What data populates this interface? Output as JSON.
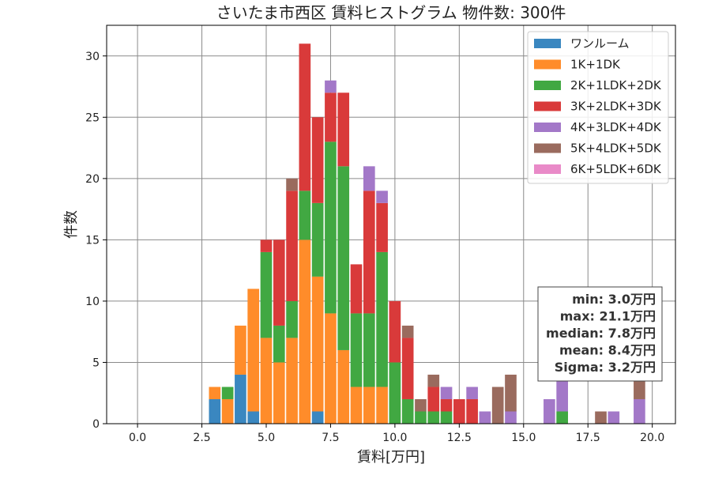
{
  "chart_data": {
    "type": "bar",
    "stacked": true,
    "title": "さいたま市西区 賃料ヒストグラム 物件数: 300件",
    "xlabel": "賃料[万円]",
    "ylabel": "件数",
    "xlim": [
      -1.2,
      20.9
    ],
    "ylim": [
      0,
      32.5
    ],
    "xticks": [
      0.0,
      2.5,
      5.0,
      7.5,
      10.0,
      12.5,
      15.0,
      17.5,
      20.0
    ],
    "xtick_labels": [
      "0.0",
      "2.5",
      "5.0",
      "7.5",
      "10.0",
      "12.5",
      "15.0",
      "17.5",
      "20.0"
    ],
    "yticks": [
      0,
      5,
      10,
      15,
      20,
      25,
      30
    ],
    "ytick_labels": [
      "0",
      "5",
      "10",
      "15",
      "20",
      "25",
      "30"
    ],
    "grid": true,
    "legend_position": "top-right",
    "bin_width": 0.5,
    "x": [
      3.0,
      3.5,
      4.0,
      4.5,
      5.0,
      5.5,
      6.0,
      6.5,
      7.0,
      7.5,
      8.0,
      8.5,
      9.0,
      9.5,
      10.0,
      10.5,
      11.0,
      11.5,
      12.0,
      12.5,
      13.0,
      13.5,
      14.0,
      14.5,
      16.0,
      16.5,
      18.0,
      18.5,
      19.5
    ],
    "series": [
      {
        "name": "ワンルーム",
        "color": "#3a87c0",
        "values": [
          2,
          0,
          4,
          1,
          0,
          0,
          0,
          0,
          1,
          0,
          0,
          0,
          0,
          0,
          0,
          0,
          0,
          0,
          0,
          0,
          0,
          0,
          0,
          0,
          0,
          0,
          0,
          0,
          0
        ]
      },
      {
        "name": "1K+1DK",
        "color": "#ff8c2a",
        "values": [
          1,
          2,
          4,
          10,
          7,
          5,
          7,
          15,
          11,
          9,
          6,
          3,
          3,
          3,
          0,
          0,
          0,
          0,
          0,
          0,
          0,
          0,
          0,
          0,
          0,
          0,
          0,
          0,
          0
        ]
      },
      {
        "name": "2K+1LDK+2DK",
        "color": "#41a842",
        "values": [
          0,
          1,
          0,
          0,
          7,
          3,
          3,
          4,
          6,
          14,
          15,
          6,
          6,
          11,
          5,
          2,
          1,
          1,
          1,
          0,
          0,
          0,
          0,
          0,
          0,
          1,
          0,
          0,
          0
        ]
      },
      {
        "name": "3K+2LDK+3DK",
        "color": "#d93a3a",
        "values": [
          0,
          0,
          0,
          0,
          1,
          7,
          9,
          12,
          7,
          4,
          6,
          4,
          10,
          4,
          5,
          5,
          0,
          2,
          1,
          2,
          2,
          0,
          0,
          0,
          0,
          0,
          0,
          0,
          0
        ]
      },
      {
        "name": "4K+3LDK+4DK",
        "color": "#a378c8",
        "values": [
          0,
          0,
          0,
          0,
          0,
          0,
          0,
          0,
          0,
          1,
          0,
          0,
          2,
          1,
          0,
          0,
          0,
          0,
          1,
          0,
          1,
          1,
          0,
          1,
          2,
          4,
          0,
          1,
          2
        ]
      },
      {
        "name": "5K+4LDK+5DK",
        "color": "#9a6b5e",
        "values": [
          0,
          0,
          0,
          0,
          0,
          0,
          1,
          0,
          0,
          0,
          0,
          0,
          0,
          0,
          0,
          1,
          1,
          1,
          0,
          0,
          0,
          0,
          3,
          3,
          0,
          0,
          1,
          0,
          2
        ]
      },
      {
        "name": "6K+5LDK+6DK",
        "color": "#e98ac8",
        "values": [
          0,
          0,
          0,
          0,
          0,
          0,
          0,
          0,
          0,
          0,
          0,
          0,
          0,
          0,
          0,
          0,
          0,
          0,
          0,
          0,
          0,
          0,
          0,
          0,
          0,
          0,
          0,
          0,
          0
        ]
      }
    ],
    "stats": [
      "min: 3.0万円",
      "max: 21.1万円",
      "median: 7.8万円",
      "mean: 8.4万円",
      "Sigma: 3.2万円"
    ],
    "stats_position": "bottom-right"
  }
}
